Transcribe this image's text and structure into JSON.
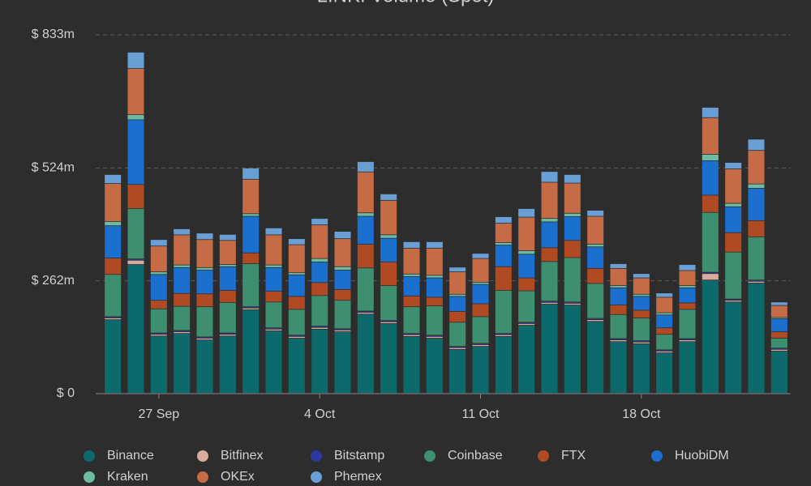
{
  "chart_data": {
    "type": "stacked_bar",
    "title": "LINK: Volume (Spot)",
    "categories": [
      null,
      null,
      "27 Sep",
      null,
      null,
      null,
      null,
      null,
      null,
      "4 Oct",
      null,
      null,
      null,
      null,
      null,
      null,
      "11 Oct",
      null,
      null,
      null,
      null,
      null,
      null,
      "18 Oct",
      null,
      null,
      null,
      null,
      null,
      null
    ],
    "ylim": [
      0,
      833
    ],
    "yticks": [
      {
        "value": 0,
        "label": "$ 0"
      },
      {
        "value": 262,
        "label": "$ 262m"
      },
      {
        "value": 524,
        "label": "$ 524m"
      },
      {
        "value": 833,
        "label": "$ 833m"
      }
    ],
    "grid": true,
    "legend": "bottom",
    "series": [
      {
        "name": "Binance",
        "color": "#0d6a6c",
        "values": [
          171,
          299,
          133,
          139,
          124,
          133,
          194,
          145,
          128,
          149,
          143,
          184,
          162,
          132,
          128,
          102,
          109,
          132,
          158,
          207,
          205,
          167,
          120,
          115,
          94,
          120,
          263,
          212,
          256,
          98
        ]
      },
      {
        "name": "Bitfinex",
        "color": "#d9ab9c",
        "values": [
          4,
          10,
          4,
          4,
          4,
          4,
          4,
          4,
          4,
          4,
          4,
          4,
          4,
          4,
          4,
          4,
          4,
          4,
          4,
          4,
          4,
          4,
          4,
          4,
          4,
          4,
          15,
          4,
          4,
          4
        ]
      },
      {
        "name": "Bitstamp",
        "color": "#2c3aa0",
        "values": [
          3,
          3,
          3,
          3,
          3,
          3,
          3,
          3,
          3,
          3,
          3,
          3,
          3,
          3,
          3,
          3,
          3,
          3,
          3,
          3,
          3,
          3,
          3,
          3,
          3,
          3,
          3,
          3,
          3,
          3
        ]
      },
      {
        "name": "Coinbase",
        "color": "#3e8f70",
        "values": [
          98,
          117,
          56,
          56,
          70,
          71,
          100,
          60,
          60,
          71,
          66,
          100,
          81,
          62,
          68,
          56,
          62,
          100,
          73,
          92,
          103,
          81,
          56,
          53,
          36,
          68,
          139,
          109,
          100,
          23
        ]
      },
      {
        "name": "FTX",
        "color": "#b04a22",
        "values": [
          38,
          56,
          20,
          30,
          30,
          28,
          25,
          25,
          30,
          30,
          25,
          55,
          55,
          25,
          20,
          25,
          30,
          55,
          30,
          32,
          40,
          35,
          22,
          18,
          15,
          15,
          40,
          45,
          38,
          15
        ]
      },
      {
        "name": "HuobiDM",
        "color": "#1a6fcf",
        "values": [
          75,
          150,
          60,
          60,
          55,
          55,
          85,
          55,
          50,
          48,
          45,
          65,
          55,
          45,
          45,
          35,
          45,
          50,
          55,
          60,
          55,
          50,
          40,
          32,
          30,
          35,
          80,
          60,
          75,
          30
        ]
      },
      {
        "name": "Kraken",
        "color": "#6cbba2",
        "values": [
          10,
          12,
          6,
          6,
          6,
          5,
          6,
          6,
          5,
          8,
          8,
          8,
          8,
          6,
          6,
          5,
          5,
          6,
          8,
          8,
          8,
          6,
          5,
          5,
          5,
          5,
          15,
          8,
          10,
          3
        ]
      },
      {
        "name": "OKEx",
        "color": "#c56b46",
        "values": [
          88,
          107,
          60,
          70,
          65,
          56,
          80,
          70,
          65,
          78,
          65,
          95,
          80,
          60,
          63,
          52,
          55,
          45,
          78,
          84,
          70,
          65,
          40,
          38,
          36,
          35,
          85,
          80,
          78,
          28
        ]
      },
      {
        "name": "Phemex",
        "color": "#6a9fd6",
        "values": [
          21,
          38,
          15,
          14,
          15,
          14,
          26,
          16,
          14,
          15,
          17,
          24,
          15,
          15,
          15,
          11,
          12,
          15,
          20,
          25,
          20,
          14,
          11,
          10,
          10,
          14,
          24,
          15,
          26,
          8
        ]
      }
    ]
  }
}
